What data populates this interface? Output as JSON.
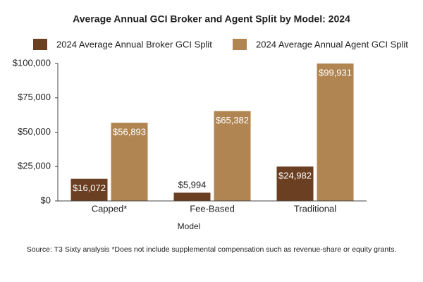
{
  "chart_data": {
    "type": "bar",
    "title": "Average Annual GCI Broker and Agent Split by Model: 2024",
    "x_label": "Model",
    "source": "Source: T3 Sixty analysis *Does not include supplemental compensation such as revenue-share or equity grants.",
    "categories": [
      "Capped*",
      "Fee-Based",
      "Traditional"
    ],
    "series": [
      {
        "name": "2024 Average Annual Broker GCI Split",
        "color": "#6b3f22",
        "values": [
          16072,
          5994,
          24982
        ],
        "value_labels": [
          "$16,072",
          "$5,994",
          "$24,982"
        ]
      },
      {
        "name": "2024 Average Annual Agent GCI Split",
        "color": "#b08552",
        "values": [
          56893,
          65382,
          99931
        ],
        "value_labels": [
          "$56,893",
          "$65,382",
          "$99,931"
        ]
      }
    ],
    "ylim": [
      0,
      100000
    ],
    "yticks": [
      {
        "value": 0,
        "label": "$0"
      },
      {
        "value": 25000,
        "label": "$25,000"
      },
      {
        "value": 50000,
        "label": "$50,000"
      },
      {
        "value": 75000,
        "label": "$75,000"
      },
      {
        "value": 100000,
        "label": "$100,000"
      }
    ],
    "grid": false
  }
}
